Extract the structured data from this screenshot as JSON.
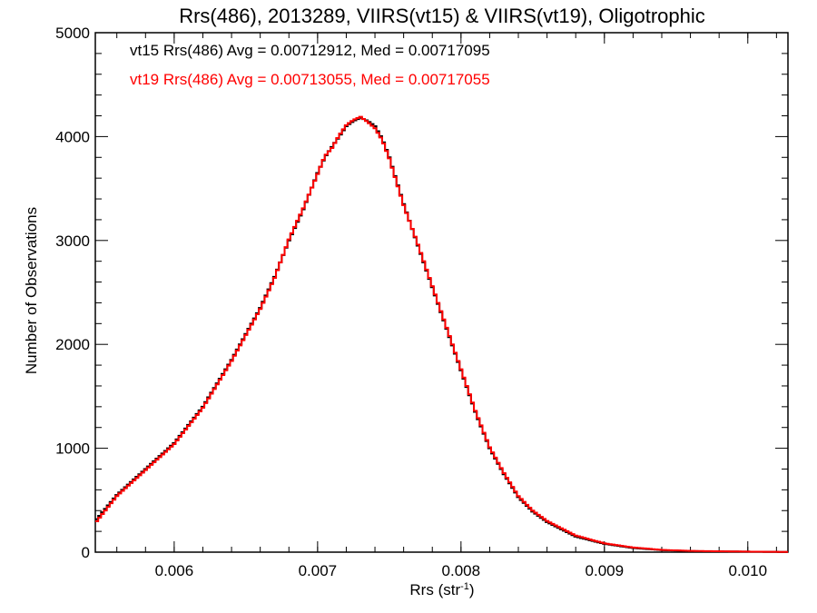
{
  "chart_data": {
    "type": "line",
    "step": true,
    "title": "Rrs(486), 2013289, VIIRS(vt15) & VIIRS(vt19), Oligotrophic",
    "xlabel": "Rrs (str",
    "xlabel_sup": "-1",
    "xlabel_close": ")",
    "ylabel": "Number of Observations",
    "xlim": [
      0.00545,
      0.01028
    ],
    "ylim": [
      0,
      5000
    ],
    "x_ticks": [
      0.006,
      0.007,
      0.008,
      0.009,
      0.01
    ],
    "x_tick_labels": [
      "0.006",
      "0.007",
      "0.008",
      "0.009",
      "0.010"
    ],
    "y_ticks": [
      0,
      1000,
      2000,
      3000,
      4000,
      5000
    ],
    "y_tick_labels": [
      "0",
      "1000",
      "2000",
      "3000",
      "4000",
      "5000"
    ],
    "grid": false,
    "legend_position": "top-left",
    "annotations": [
      "vt15 Rrs(486) Avg = 0.00712912, Med = 0.00717095",
      "vt19 Rrs(486) Avg = 0.00713055, Med = 0.00717055"
    ],
    "series": [
      {
        "color": "#000000",
        "x": [
          0.00545,
          0.0056,
          0.0058,
          0.006,
          0.0062,
          0.0064,
          0.0066,
          0.0067,
          0.0068,
          0.0069,
          0.007,
          0.00705,
          0.0071,
          0.00715,
          0.0072,
          0.00725,
          0.0073,
          0.00735,
          0.0074,
          0.00745,
          0.0075,
          0.0076,
          0.0077,
          0.0078,
          0.0079,
          0.008,
          0.0081,
          0.0082,
          0.0083,
          0.0084,
          0.0085,
          0.0086,
          0.0088,
          0.009,
          0.0092,
          0.0094,
          0.0096,
          0.01,
          0.01028
        ],
        "y": [
          300,
          550,
          800,
          1050,
          1400,
          1850,
          2350,
          2650,
          3000,
          3300,
          3650,
          3800,
          3900,
          4000,
          4100,
          4150,
          4180,
          4150,
          4100,
          3980,
          3800,
          3350,
          2950,
          2550,
          2150,
          1750,
          1350,
          1000,
          750,
          530,
          390,
          290,
          150,
          80,
          40,
          20,
          10,
          5,
          2
        ]
      },
      {
        "color": "#ff0000",
        "x": [
          0.00545,
          0.0056,
          0.0058,
          0.006,
          0.0062,
          0.0064,
          0.0066,
          0.0067,
          0.0068,
          0.0069,
          0.007,
          0.00705,
          0.0071,
          0.00715,
          0.0072,
          0.00725,
          0.0073,
          0.00735,
          0.0074,
          0.00745,
          0.0075,
          0.0076,
          0.0077,
          0.0078,
          0.0079,
          0.008,
          0.0081,
          0.0082,
          0.0083,
          0.0084,
          0.0085,
          0.0086,
          0.0088,
          0.009,
          0.0092,
          0.0094,
          0.0096,
          0.01,
          0.01028
        ],
        "y": [
          280,
          540,
          790,
          1040,
          1390,
          1840,
          2340,
          2640,
          3010,
          3310,
          3640,
          3810,
          3890,
          4010,
          4110,
          4160,
          4190,
          4140,
          4080,
          3970,
          3790,
          3340,
          2960,
          2560,
          2160,
          1760,
          1360,
          1010,
          760,
          540,
          400,
          300,
          160,
          85,
          45,
          22,
          12,
          5,
          2
        ]
      }
    ]
  }
}
